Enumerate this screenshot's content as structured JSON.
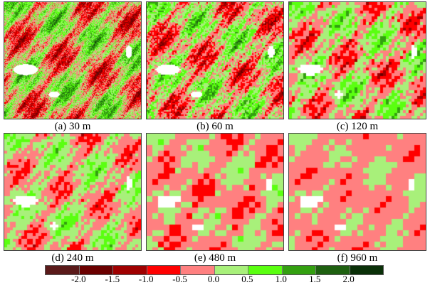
{
  "panels": [
    {
      "label": "(a) 30 m"
    },
    {
      "label": "(b) 60 m"
    },
    {
      "label": "(c) 120 m"
    },
    {
      "label": "(d) 240 m"
    },
    {
      "label": "(e) 480 m"
    },
    {
      "label": "(f) 960 m"
    }
  ],
  "colorbar": {
    "colors": [
      "#5a1a1a",
      "#6b0000",
      "#a00000",
      "#ff0000",
      "#ff8080",
      "#a8f07a",
      "#5aff10",
      "#33a010",
      "#1e6010",
      "#0a3008"
    ],
    "ticks": [
      "-2.0",
      "-1.5",
      "-1.0",
      "-0.5",
      "0.0",
      "0.5",
      "1.0",
      "1.5",
      "2.0"
    ]
  }
}
